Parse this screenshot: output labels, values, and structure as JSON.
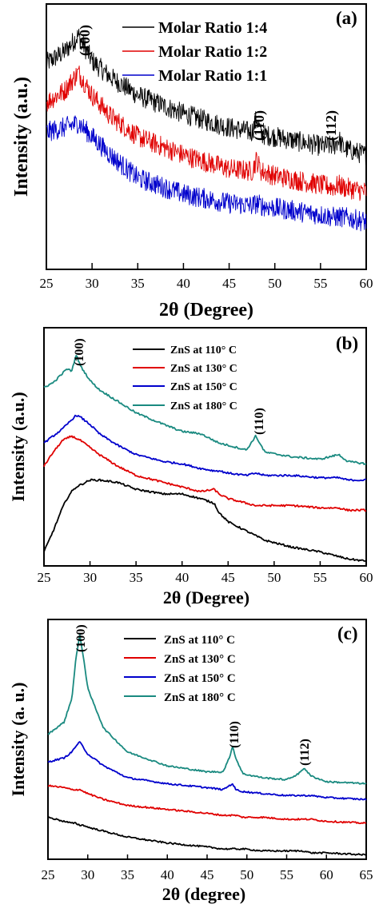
{
  "panels": [
    {
      "letter": "(a)",
      "ylabel": "Intensity (a.u.)",
      "xlabel": "2θ (Degree)",
      "x_ticks": [
        "25",
        "30",
        "35",
        "40",
        "45",
        "50",
        "55",
        "60"
      ],
      "peaks": [
        "(100)",
        "(110)",
        "(112)"
      ],
      "legend": [
        "Molar Ratio 1:4",
        "Molar Ratio 1:2",
        "Molar Ratio 1:1"
      ]
    },
    {
      "letter": "(b)",
      "ylabel": "Intensity (a.u.)",
      "xlabel": "2θ (Degree)",
      "x_ticks": [
        "25",
        "30",
        "35",
        "40",
        "45",
        "50",
        "55",
        "60"
      ],
      "peaks": [
        "(100)",
        "(110)"
      ],
      "legend": [
        "ZnS at 110° C",
        "ZnS at 130° C",
        "ZnS at 150° C",
        "ZnS at 180° C"
      ]
    },
    {
      "letter": "(c)",
      "ylabel": "Intensity (a. u.)",
      "xlabel": "2θ (degree)",
      "x_ticks": [
        "25",
        "30",
        "35",
        "40",
        "45",
        "50",
        "55",
        "60",
        "65"
      ],
      "peaks": [
        "(100)",
        "(110)",
        "(112)"
      ],
      "legend": [
        "ZnS at 110° C",
        "ZnS at 130° C",
        "ZnS at 150° C",
        "ZnS at 180° C"
      ]
    }
  ],
  "colors": {
    "black": "#000000",
    "red": "#e00000",
    "blue": "#0000cc",
    "teal": "#1a8a80"
  },
  "chart_data": [
    {
      "type": "line",
      "title": "(a)",
      "xlabel": "2θ (Degree)",
      "ylabel": "Intensity (a.u.)",
      "xlim": [
        25,
        60
      ],
      "y_ticks_shown": false,
      "legend_position": "top-right",
      "annotations": [
        {
          "text": "(100)",
          "x": 28.5
        },
        {
          "text": "(110)",
          "x": 48
        },
        {
          "text": "(112)",
          "x": 57
        }
      ],
      "x": [
        25,
        27,
        28.5,
        30,
        32,
        35,
        40,
        45,
        47.5,
        48,
        48.5,
        50,
        55,
        56.5,
        57,
        57.5,
        60
      ],
      "series": [
        {
          "name": "Molar Ratio 1:4",
          "color": "black",
          "noisy": true,
          "values": [
            88,
            93,
            100,
            89,
            82,
            74,
            66,
            60,
            58,
            64,
            57,
            56,
            52,
            52,
            55,
            51,
            48
          ]
        },
        {
          "name": "Molar Ratio 1:2",
          "color": "red",
          "noisy": true,
          "values": [
            71,
            76,
            84,
            74,
            65,
            56,
            48,
            42,
            41,
            46,
            41,
            39,
            35,
            34,
            35,
            34,
            32
          ]
        },
        {
          "name": "Molar Ratio 1:1",
          "color": "blue",
          "noisy": true,
          "values": [
            58,
            60,
            62,
            56,
            48,
            38,
            31,
            27,
            26,
            27,
            26,
            25,
            22,
            21,
            21,
            21,
            19
          ]
        }
      ]
    },
    {
      "type": "line",
      "title": "(b)",
      "xlabel": "2θ (Degree)",
      "ylabel": "Intensity (a.u.)",
      "xlim": [
        25,
        60
      ],
      "y_ticks_shown": false,
      "legend_position": "top-center",
      "annotations": [
        {
          "text": "(100)",
          "x": 28.5
        },
        {
          "text": "(110)",
          "x": 48
        }
      ],
      "x": [
        25,
        26,
        27,
        27.5,
        28,
        28.5,
        29,
        30,
        31,
        33,
        35,
        38,
        40,
        42,
        43.5,
        44,
        45,
        47,
        48,
        49,
        52,
        55,
        57,
        58,
        60
      ],
      "series": [
        {
          "name": "ZnS at 110° C",
          "color": "black",
          "noisy": false,
          "values": [
            5,
            14,
            24,
            28,
            31,
            33,
            34,
            36,
            36,
            35,
            32,
            30,
            30,
            28,
            26,
            22,
            18,
            14,
            12,
            10,
            7,
            5,
            3,
            2,
            1
          ]
        },
        {
          "name": "ZnS at 130° C",
          "color": "red",
          "noisy": false,
          "values": [
            42,
            48,
            53,
            54,
            55,
            54,
            53,
            50,
            47,
            42,
            38,
            35,
            33,
            31,
            32,
            30,
            28,
            26,
            25,
            25,
            25,
            24,
            24,
            23,
            23
          ]
        },
        {
          "name": "ZnS at 150° C",
          "color": "blue",
          "noisy": false,
          "values": [
            52,
            55,
            58,
            60,
            62,
            64,
            63,
            60,
            56,
            51,
            47,
            44,
            43,
            41,
            40,
            40,
            39,
            38,
            39,
            38,
            38,
            37,
            37,
            36,
            36
          ]
        },
        {
          "name": "ZnS at 180° C",
          "color": "teal",
          "noisy": false,
          "values": [
            76,
            78,
            82,
            84,
            83,
            90,
            85,
            79,
            75,
            70,
            65,
            60,
            57,
            56,
            53,
            52,
            51,
            49,
            55,
            48,
            46,
            45,
            47,
            44,
            43
          ]
        }
      ]
    },
    {
      "type": "line",
      "title": "(c)",
      "xlabel": "2θ (degree)",
      "ylabel": "Intensity (a. u.)",
      "xlim": [
        25,
        65
      ],
      "y_ticks_shown": false,
      "legend_position": "top-center",
      "annotations": [
        {
          "text": "(100)",
          "x": 29
        },
        {
          "text": "(110)",
          "x": 48
        },
        {
          "text": "(112)",
          "x": 57
        }
      ],
      "x": [
        25,
        27,
        28,
        28.5,
        29,
        29.5,
        30,
        32,
        35,
        40,
        45,
        47,
        47.8,
        48.2,
        48.6,
        49.5,
        52,
        55,
        56.5,
        57.2,
        58,
        60,
        65
      ],
      "series": [
        {
          "name": "ZnS at 110° C",
          "color": "black",
          "noisy": false,
          "values": [
            20,
            18,
            17,
            17,
            16,
            16,
            15,
            13,
            10,
            7,
            5,
            4,
            4,
            4,
            4,
            4,
            3,
            3,
            3,
            3,
            2,
            2,
            1
          ]
        },
        {
          "name": "ZnS at 130° C",
          "color": "red",
          "noisy": false,
          "values": [
            36,
            35,
            34,
            34,
            34,
            33,
            32,
            29,
            26,
            24,
            22,
            21,
            21,
            21,
            21,
            20,
            20,
            19,
            19,
            19,
            19,
            18,
            17
          ]
        },
        {
          "name": "ZnS at 150° C",
          "color": "blue",
          "noisy": false,
          "values": [
            48,
            50,
            53,
            56,
            58,
            55,
            52,
            46,
            40,
            37,
            35,
            34,
            36,
            37,
            34,
            33,
            32,
            31,
            31,
            31,
            31,
            30,
            29
          ]
        },
        {
          "name": "ZnS at 180° C",
          "color": "teal",
          "noisy": false,
          "values": [
            62,
            68,
            80,
            100,
            112,
            100,
            85,
            65,
            53,
            46,
            43,
            43,
            50,
            56,
            50,
            42,
            40,
            39,
            42,
            45,
            41,
            38,
            37
          ]
        }
      ]
    }
  ]
}
